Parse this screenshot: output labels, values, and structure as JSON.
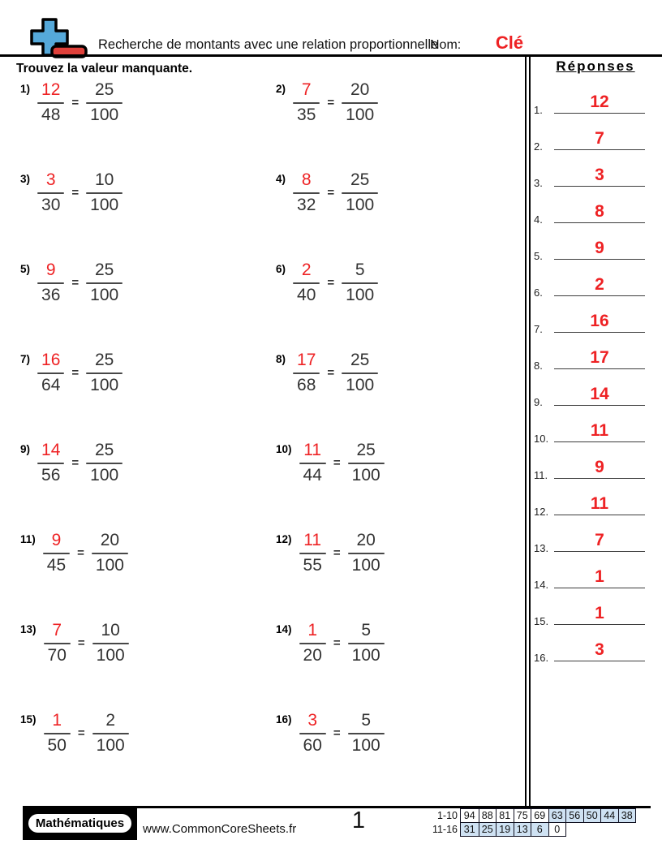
{
  "colors": {
    "red": "#ee2224",
    "logo_blue": "#55a9da",
    "logo_red": "#e0413b",
    "score_highlight": "#cfe2f3"
  },
  "header": {
    "title": "Recherche de montants avec une relation proportionnelle",
    "name_label": "Nom:",
    "name_value": "Clé"
  },
  "instruction": "Trouvez la valeur manquante.",
  "equals": "=",
  "problems": [
    {
      "label": "1)",
      "left": {
        "num": "12",
        "den": "48"
      },
      "right": {
        "num": "25",
        "den": "100"
      }
    },
    {
      "label": "2)",
      "left": {
        "num": "7",
        "den": "35"
      },
      "right": {
        "num": "20",
        "den": "100"
      }
    },
    {
      "label": "3)",
      "left": {
        "num": "3",
        "den": "30"
      },
      "right": {
        "num": "10",
        "den": "100"
      }
    },
    {
      "label": "4)",
      "left": {
        "num": "8",
        "den": "32"
      },
      "right": {
        "num": "25",
        "den": "100"
      }
    },
    {
      "label": "5)",
      "left": {
        "num": "9",
        "den": "36"
      },
      "right": {
        "num": "25",
        "den": "100"
      }
    },
    {
      "label": "6)",
      "left": {
        "num": "2",
        "den": "40"
      },
      "right": {
        "num": "5",
        "den": "100"
      }
    },
    {
      "label": "7)",
      "left": {
        "num": "16",
        "den": "64"
      },
      "right": {
        "num": "25",
        "den": "100"
      }
    },
    {
      "label": "8)",
      "left": {
        "num": "17",
        "den": "68"
      },
      "right": {
        "num": "25",
        "den": "100"
      }
    },
    {
      "label": "9)",
      "left": {
        "num": "14",
        "den": "56"
      },
      "right": {
        "num": "25",
        "den": "100"
      }
    },
    {
      "label": "10)",
      "left": {
        "num": "11",
        "den": "44"
      },
      "right": {
        "num": "25",
        "den": "100"
      }
    },
    {
      "label": "11)",
      "left": {
        "num": "9",
        "den": "45"
      },
      "right": {
        "num": "20",
        "den": "100"
      }
    },
    {
      "label": "12)",
      "left": {
        "num": "11",
        "den": "55"
      },
      "right": {
        "num": "20",
        "den": "100"
      }
    },
    {
      "label": "13)",
      "left": {
        "num": "7",
        "den": "70"
      },
      "right": {
        "num": "10",
        "den": "100"
      }
    },
    {
      "label": "14)",
      "left": {
        "num": "1",
        "den": "20"
      },
      "right": {
        "num": "5",
        "den": "100"
      }
    },
    {
      "label": "15)",
      "left": {
        "num": "1",
        "den": "50"
      },
      "right": {
        "num": "2",
        "den": "100"
      }
    },
    {
      "label": "16)",
      "left": {
        "num": "3",
        "den": "60"
      },
      "right": {
        "num": "5",
        "den": "100"
      }
    }
  ],
  "answers": {
    "title": "Réponses",
    "items": [
      {
        "label": "1.",
        "value": "12"
      },
      {
        "label": "2.",
        "value": "7"
      },
      {
        "label": "3.",
        "value": "3"
      },
      {
        "label": "4.",
        "value": "8"
      },
      {
        "label": "5.",
        "value": "9"
      },
      {
        "label": "6.",
        "value": "2"
      },
      {
        "label": "7.",
        "value": "16"
      },
      {
        "label": "8.",
        "value": "17"
      },
      {
        "label": "9.",
        "value": "14"
      },
      {
        "label": "10.",
        "value": "11"
      },
      {
        "label": "11.",
        "value": "9"
      },
      {
        "label": "12.",
        "value": "11"
      },
      {
        "label": "13.",
        "value": "7"
      },
      {
        "label": "14.",
        "value": "1"
      },
      {
        "label": "15.",
        "value": "1"
      },
      {
        "label": "16.",
        "value": "3"
      }
    ]
  },
  "footer": {
    "brand": "Mathématiques",
    "website": "www.CommonCoreSheets.fr",
    "page_number": "1",
    "score_rows": [
      {
        "label": "1-10",
        "cells": [
          {
            "v": "94",
            "hl": false
          },
          {
            "v": "88",
            "hl": false
          },
          {
            "v": "81",
            "hl": false
          },
          {
            "v": "75",
            "hl": false
          },
          {
            "v": "69",
            "hl": false
          },
          {
            "v": "63",
            "hl": true
          },
          {
            "v": "56",
            "hl": true
          },
          {
            "v": "50",
            "hl": true
          },
          {
            "v": "44",
            "hl": true
          },
          {
            "v": "38",
            "hl": true
          }
        ]
      },
      {
        "label": "11-16",
        "cells": [
          {
            "v": "31",
            "hl": true
          },
          {
            "v": "25",
            "hl": true
          },
          {
            "v": "19",
            "hl": true
          },
          {
            "v": "13",
            "hl": true
          },
          {
            "v": "6",
            "hl": true
          },
          {
            "v": "0",
            "hl": false
          }
        ]
      }
    ]
  }
}
